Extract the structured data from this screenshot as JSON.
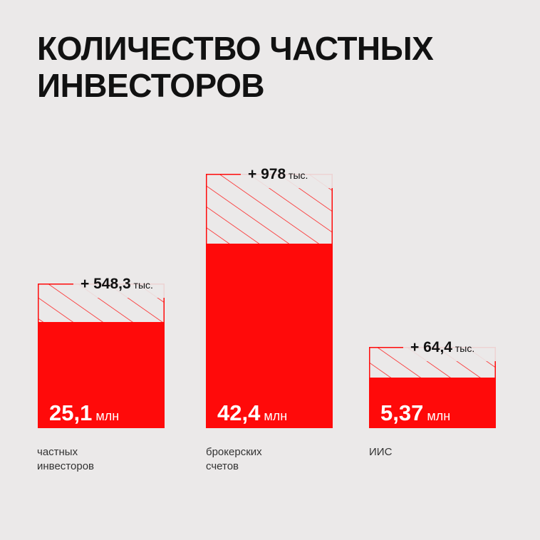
{
  "title": {
    "line1": "КОЛИЧЕСТВО ЧАСТНЫХ",
    "line2": "ИНВЕСТОРОВ"
  },
  "colors": {
    "bar": "#ff0a0a",
    "background": "#ebe9e9",
    "hatch": "#ff0a0a"
  },
  "chart_data": {
    "type": "bar",
    "title": "КОЛИЧЕСТВО ЧАСТНЫХ ИНВЕСТОРОВ",
    "categories": [
      "частных\nинвесторов",
      "брокерских\nсчетов",
      "ИИС"
    ],
    "series": [
      {
        "values": [
          25.1,
          42.4,
          5.37
        ],
        "value_labels": [
          {
            "main": "25,1",
            "unit": " млн"
          },
          {
            "main": "42,4",
            "unit": " млн"
          },
          {
            "main": "5,37",
            "unit": " млн"
          }
        ]
      },
      {
        "values_thousands": [
          548.3,
          978,
          64.4
        ],
        "increment_labels": [
          {
            "main": "+ 548,3",
            "unit": " тыс."
          },
          {
            "main": "+ 978",
            "unit": " тыс."
          },
          {
            "main": "+ 64,4",
            "unit": " тыс."
          }
        ]
      }
    ],
    "legend": "none",
    "grid": false
  }
}
